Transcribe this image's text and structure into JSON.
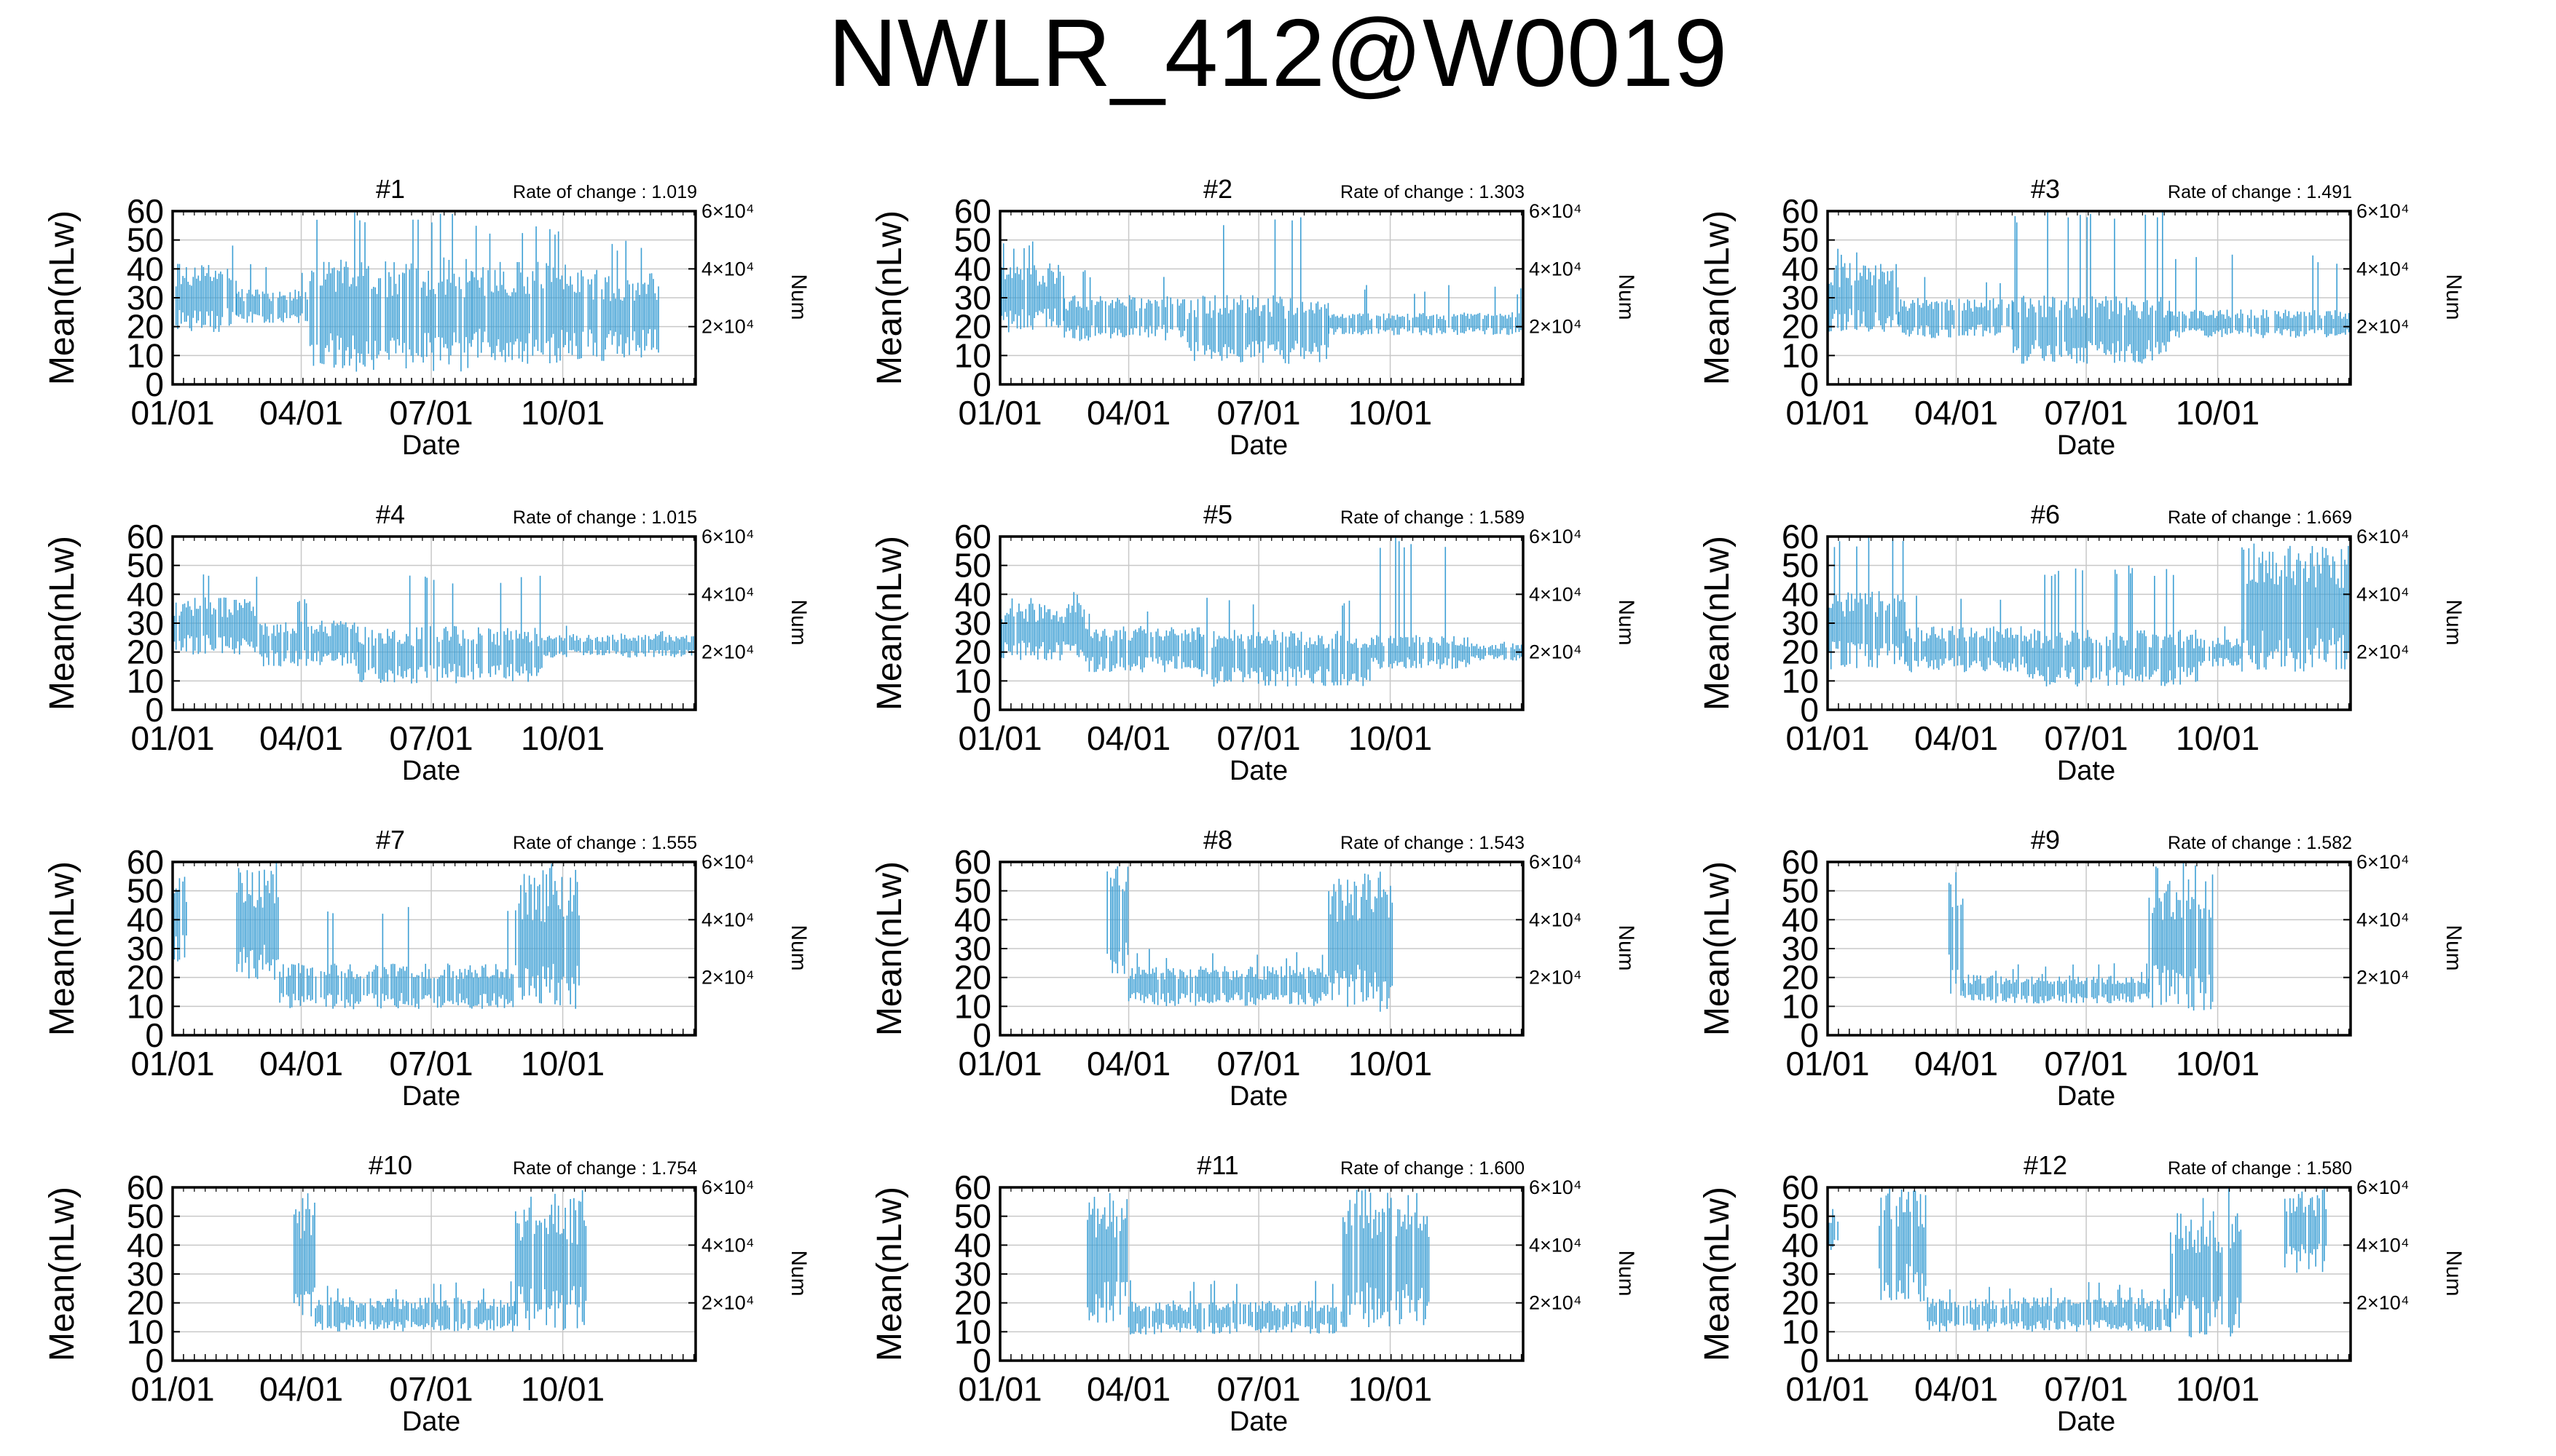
{
  "figure": {
    "title": "NWLR_412@W0019",
    "line_color": "#3d9fd4",
    "grid_color": "#c8c8c8",
    "text_color": "#000000"
  },
  "chart_data": [
    {
      "type": "line",
      "title": "#1",
      "annotation": "Rate of change : 1.019",
      "xlabel": "Date",
      "ylabel": "Mean(nLw)",
      "y2label": "Num",
      "x_ticks": [
        "01/01",
        "04/01",
        "07/01",
        "10/01"
      ],
      "y_ticks": [
        "0",
        "10",
        "20",
        "30",
        "40",
        "50",
        "60"
      ],
      "y2_ticks": [
        "2×10⁴",
        "4×10⁴",
        "6×10⁴"
      ],
      "ylim": [
        0,
        60
      ],
      "y2lim": [
        0,
        60000
      ],
      "x_range_days": [
        0,
        366
      ],
      "grid": true,
      "segments": [
        {
          "days": [
            0,
            45
          ],
          "center": 30,
          "spread": 12,
          "extreme": 52
        },
        {
          "days": [
            45,
            95
          ],
          "center": 27,
          "spread": 6,
          "extreme": 42
        },
        {
          "days": [
            95,
            210
          ],
          "center": 24,
          "spread": 20,
          "extreme": 60
        },
        {
          "days": [
            210,
            280
          ],
          "center": 25,
          "spread": 18,
          "extreme": 55
        },
        {
          "days": [
            280,
            340
          ],
          "center": 24,
          "spread": 16,
          "extreme": 50
        }
      ]
    },
    {
      "type": "line",
      "title": "#2",
      "annotation": "Rate of change : 1.303",
      "xlabel": "Date",
      "ylabel": "Mean(nLw)",
      "y2label": "Num",
      "x_ticks": [
        "01/01",
        "04/01",
        "07/01",
        "10/01"
      ],
      "y_ticks": [
        "0",
        "10",
        "20",
        "30",
        "40",
        "50",
        "60"
      ],
      "y2_ticks": [
        "2×10⁴",
        "4×10⁴",
        "6×10⁴"
      ],
      "ylim": [
        0,
        60
      ],
      "y2lim": [
        0,
        60000
      ],
      "x_range_days": [
        0,
        366
      ],
      "grid": true,
      "segments": [
        {
          "days": [
            0,
            45
          ],
          "center": 30,
          "spread": 12,
          "extreme": 50
        },
        {
          "days": [
            45,
            130
          ],
          "center": 23,
          "spread": 8,
          "extreme": 40
        },
        {
          "days": [
            130,
            230
          ],
          "center": 19,
          "spread": 12,
          "extreme": 58
        },
        {
          "days": [
            230,
            366
          ],
          "center": 21,
          "spread": 4,
          "extreme": 35
        }
      ]
    },
    {
      "type": "line",
      "title": "#3",
      "annotation": "Rate of change : 1.491",
      "xlabel": "Date",
      "ylabel": "Mean(nLw)",
      "y2label": "Num",
      "x_ticks": [
        "01/01",
        "04/01",
        "07/01",
        "10/01"
      ],
      "y_ticks": [
        "0",
        "10",
        "20",
        "30",
        "40",
        "50",
        "60"
      ],
      "y2_ticks": [
        "2×10⁴",
        "4×10⁴",
        "6×10⁴"
      ],
      "ylim": [
        0,
        60
      ],
      "y2lim": [
        0,
        60000
      ],
      "x_range_days": [
        0,
        366
      ],
      "grid": true,
      "segments": [
        {
          "days": [
            0,
            50
          ],
          "center": 30,
          "spread": 12,
          "extreme": 48
        },
        {
          "days": [
            50,
            130
          ],
          "center": 23,
          "spread": 7,
          "extreme": 38
        },
        {
          "days": [
            130,
            240
          ],
          "center": 19,
          "spread": 12,
          "extreme": 60
        },
        {
          "days": [
            240,
            366
          ],
          "center": 21,
          "spread": 5,
          "extreme": 45
        }
      ]
    },
    {
      "type": "line",
      "title": "#4",
      "annotation": "Rate of change : 1.015",
      "xlabel": "Date",
      "ylabel": "Mean(nLw)",
      "y2label": "Num",
      "x_ticks": [
        "01/01",
        "04/01",
        "07/01",
        "10/01"
      ],
      "y_ticks": [
        "0",
        "10",
        "20",
        "30",
        "40",
        "50",
        "60"
      ],
      "y2_ticks": [
        "2×10⁴",
        "4×10⁴",
        "6×10⁴"
      ],
      "ylim": [
        0,
        60
      ],
      "y2lim": [
        0,
        60000
      ],
      "x_range_days": [
        0,
        366
      ],
      "grid": true,
      "segments": [
        {
          "days": [
            0,
            60
          ],
          "center": 29,
          "spread": 10,
          "extreme": 48
        },
        {
          "days": [
            60,
            130
          ],
          "center": 23,
          "spread": 8,
          "extreme": 40
        },
        {
          "days": [
            130,
            260
          ],
          "center": 19,
          "spread": 10,
          "extreme": 47
        },
        {
          "days": [
            260,
            366
          ],
          "center": 22,
          "spread": 4,
          "extreme": 30
        }
      ]
    },
    {
      "type": "line",
      "title": "#5",
      "annotation": "Rate of change : 1.589",
      "xlabel": "Date",
      "ylabel": "Mean(nLw)",
      "y2label": "Num",
      "x_ticks": [
        "01/01",
        "04/01",
        "07/01",
        "10/01"
      ],
      "y_ticks": [
        "0",
        "10",
        "20",
        "30",
        "40",
        "50",
        "60"
      ],
      "y2_ticks": [
        "2×10⁴",
        "4×10⁴",
        "6×10⁴"
      ],
      "ylim": [
        0,
        60
      ],
      "y2lim": [
        0,
        60000
      ],
      "x_range_days": [
        0,
        366
      ],
      "grid": true,
      "segments": [
        {
          "days": [
            0,
            60
          ],
          "center": 27,
          "spread": 10,
          "extreme": 42
        },
        {
          "days": [
            60,
            140
          ],
          "center": 21,
          "spread": 8,
          "extreme": 35
        },
        {
          "days": [
            140,
            260
          ],
          "center": 18,
          "spread": 10,
          "extreme": 40
        },
        {
          "days": [
            260,
            330
          ],
          "center": 20,
          "spread": 6,
          "extreme": 60
        },
        {
          "days": [
            330,
            366
          ],
          "center": 20,
          "spread": 3,
          "extreme": 25
        }
      ]
    },
    {
      "type": "line",
      "title": "#6",
      "annotation": "Rate of change : 1.669",
      "xlabel": "Date",
      "ylabel": "Mean(nLw)",
      "y2label": "Num",
      "x_ticks": [
        "01/01",
        "04/01",
        "07/01",
        "10/01"
      ],
      "y_ticks": [
        "0",
        "10",
        "20",
        "30",
        "40",
        "50",
        "60"
      ],
      "y2_ticks": [
        "2×10⁴",
        "4×10⁴",
        "6×10⁴"
      ],
      "ylim": [
        0,
        60
      ],
      "y2lim": [
        0,
        60000
      ],
      "x_range_days": [
        0,
        366
      ],
      "grid": true,
      "segments": [
        {
          "days": [
            0,
            55
          ],
          "center": 28,
          "spread": 14,
          "extreme": 60
        },
        {
          "days": [
            55,
            140
          ],
          "center": 21,
          "spread": 8,
          "extreme": 40
        },
        {
          "days": [
            140,
            260
          ],
          "center": 18,
          "spread": 10,
          "extreme": 50
        },
        {
          "days": [
            260,
            290
          ],
          "center": 20,
          "spread": 5,
          "extreme": 30
        },
        {
          "days": [
            290,
            366
          ],
          "center": 35,
          "spread": 22,
          "extreme": 60
        }
      ]
    },
    {
      "type": "line",
      "title": "#7",
      "annotation": "Rate of change : 1.555",
      "xlabel": "Date",
      "ylabel": "Mean(nLw)",
      "y2label": "Num",
      "x_ticks": [
        "01/01",
        "04/01",
        "07/01",
        "10/01"
      ],
      "y_ticks": [
        "0",
        "10",
        "20",
        "30",
        "40",
        "50",
        "60"
      ],
      "y2_ticks": [
        "2×10⁴",
        "4×10⁴",
        "6×10⁴"
      ],
      "ylim": [
        0,
        60
      ],
      "y2lim": [
        0,
        60000
      ],
      "x_range_days": [
        0,
        366
      ],
      "grid": true,
      "segments": [
        {
          "days": [
            0,
            10
          ],
          "center": 40,
          "spread": 15,
          "extreme": 60
        },
        {
          "days": [
            45,
            75
          ],
          "center": 38,
          "spread": 20,
          "extreme": 60
        },
        {
          "days": [
            75,
            240
          ],
          "center": 17,
          "spread": 8,
          "extreme": 45
        },
        {
          "days": [
            240,
            285
          ],
          "center": 32,
          "spread": 24,
          "extreme": 60
        }
      ]
    },
    {
      "type": "line",
      "title": "#8",
      "annotation": "Rate of change : 1.543",
      "xlabel": "Date",
      "ylabel": "Mean(nLw)",
      "y2label": "Num",
      "x_ticks": [
        "01/01",
        "04/01",
        "07/01",
        "10/01"
      ],
      "y_ticks": [
        "0",
        "10",
        "20",
        "30",
        "40",
        "50",
        "60"
      ],
      "y2_ticks": [
        "2×10⁴",
        "4×10⁴",
        "6×10⁴"
      ],
      "ylim": [
        0,
        60
      ],
      "y2lim": [
        0,
        60000
      ],
      "x_range_days": [
        0,
        366
      ],
      "grid": true,
      "segments": [
        {
          "days": [
            75,
            90
          ],
          "center": 40,
          "spread": 20,
          "extreme": 60
        },
        {
          "days": [
            90,
            230
          ],
          "center": 17,
          "spread": 7,
          "extreme": 30
        },
        {
          "days": [
            230,
            275
          ],
          "center": 32,
          "spread": 24,
          "extreme": 60
        }
      ]
    },
    {
      "type": "line",
      "title": "#9",
      "annotation": "Rate of change : 1.582",
      "xlabel": "Date",
      "ylabel": "Mean(nLw)",
      "y2label": "Num",
      "x_ticks": [
        "01/01",
        "04/01",
        "07/01",
        "10/01"
      ],
      "y_ticks": [
        "0",
        "10",
        "20",
        "30",
        "40",
        "50",
        "60"
      ],
      "y2_ticks": [
        "2×10⁴",
        "4×10⁴",
        "6×10⁴"
      ],
      "ylim": [
        0,
        60
      ],
      "y2lim": [
        0,
        60000
      ],
      "x_range_days": [
        0,
        366
      ],
      "grid": true,
      "segments": [
        {
          "days": [
            85,
            95
          ],
          "center": 35,
          "spread": 22,
          "extreme": 60
        },
        {
          "days": [
            95,
            225
          ],
          "center": 16,
          "spread": 5,
          "extreme": 25
        },
        {
          "days": [
            225,
            270
          ],
          "center": 32,
          "spread": 24,
          "extreme": 60
        }
      ]
    },
    {
      "type": "line",
      "title": "#10",
      "annotation": "Rate of change : 1.754",
      "xlabel": "Date",
      "ylabel": "Mean(nLw)",
      "y2label": "Num",
      "x_ticks": [
        "01/01",
        "04/01",
        "07/01",
        "10/01"
      ],
      "y_ticks": [
        "0",
        "10",
        "20",
        "30",
        "40",
        "50",
        "60"
      ],
      "y2_ticks": [
        "2×10⁴",
        "4×10⁴",
        "6×10⁴"
      ],
      "ylim": [
        0,
        60
      ],
      "y2lim": [
        0,
        60000
      ],
      "x_range_days": [
        0,
        366
      ],
      "grid": true,
      "segments": [
        {
          "days": [
            85,
            100
          ],
          "center": 35,
          "spread": 20,
          "extreme": 60
        },
        {
          "days": [
            100,
            240
          ],
          "center": 16,
          "spread": 6,
          "extreme": 28
        },
        {
          "days": [
            240,
            290
          ],
          "center": 33,
          "spread": 24,
          "extreme": 60
        }
      ]
    },
    {
      "type": "line",
      "title": "#11",
      "annotation": "Rate of change : 1.600",
      "xlabel": "Date",
      "ylabel": "Mean(nLw)",
      "y2label": "Num",
      "x_ticks": [
        "01/01",
        "04/01",
        "07/01",
        "10/01"
      ],
      "y_ticks": [
        "0",
        "10",
        "20",
        "30",
        "40",
        "50",
        "60"
      ],
      "y2_ticks": [
        "2×10⁴",
        "4×10⁴",
        "6×10⁴"
      ],
      "ylim": [
        0,
        60
      ],
      "y2lim": [
        0,
        60000
      ],
      "x_range_days": [
        0,
        366
      ],
      "grid": true,
      "segments": [
        {
          "days": [
            60,
            90
          ],
          "center": 35,
          "spread": 22,
          "extreme": 60
        },
        {
          "days": [
            90,
            240
          ],
          "center": 15,
          "spread": 6,
          "extreme": 28
        },
        {
          "days": [
            240,
            300
          ],
          "center": 35,
          "spread": 24,
          "extreme": 60
        }
      ]
    },
    {
      "type": "line",
      "title": "#12",
      "annotation": "Rate of change : 1.580",
      "xlabel": "Date",
      "ylabel": "Mean(nLw)",
      "y2label": "Num",
      "x_ticks": [
        "01/01",
        "04/01",
        "07/01",
        "10/01"
      ],
      "y_ticks": [
        "0",
        "10",
        "20",
        "30",
        "40",
        "50",
        "60"
      ],
      "y2_ticks": [
        "2×10⁴",
        "4×10⁴",
        "6×10⁴"
      ],
      "ylim": [
        0,
        60
      ],
      "y2lim": [
        0,
        60000
      ],
      "x_range_days": [
        0,
        366
      ],
      "grid": true,
      "segments": [
        {
          "days": [
            0,
            8
          ],
          "center": 45,
          "spread": 8,
          "extreme": 55
        },
        {
          "days": [
            35,
            70
          ],
          "center": 40,
          "spread": 20,
          "extreme": 60
        },
        {
          "days": [
            70,
            240
          ],
          "center": 16,
          "spread": 6,
          "extreme": 28
        },
        {
          "days": [
            240,
            290
          ],
          "center": 30,
          "spread": 22,
          "extreme": 60
        },
        {
          "days": [
            320,
            350
          ],
          "center": 45,
          "spread": 15,
          "extreme": 60
        }
      ]
    }
  ]
}
